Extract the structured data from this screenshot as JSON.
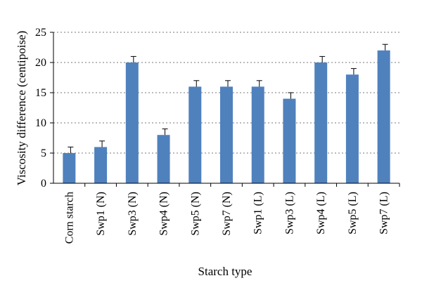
{
  "chart_data": {
    "type": "bar",
    "categories": [
      "Corn starch",
      "Swp1 (N)",
      "Swp3 (N)",
      "Swp4 (N)",
      "Swp5 (N)",
      "Swp7 (N)",
      "Swp1 (L)",
      "Swp3 (L)",
      "Swp4 (L)",
      "Swp5 (L)",
      "Swp7 (L)"
    ],
    "values": [
      5,
      6,
      20,
      8,
      16,
      16,
      16,
      14,
      20,
      18,
      22
    ],
    "error": [
      1,
      1,
      1,
      1,
      1,
      1,
      1,
      1,
      1,
      1,
      1
    ],
    "xlabel": "Starch type",
    "ylabel": "Viscosity difference (centipoise)",
    "ylim": [
      0,
      25
    ],
    "yticks": [
      0,
      5,
      10,
      15,
      20,
      25
    ],
    "grid": "horizontal dotted",
    "bar_color": "#4f81bd"
  }
}
